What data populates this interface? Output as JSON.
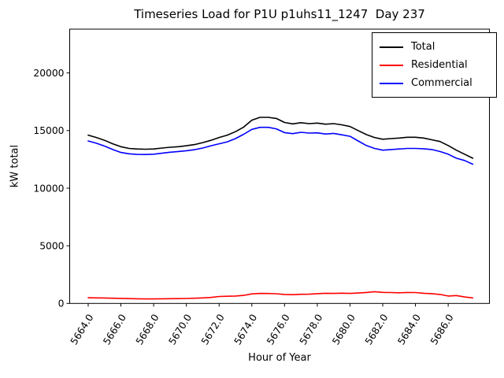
{
  "title": "Timeseries Load for P1U p1uhs11_1247  Day 237",
  "chart_data": {
    "type": "line",
    "title": "Timeseries Load for P1U p1uhs11_1247  Day 237",
    "xlabel": "Hour of Year",
    "ylabel": "kW total",
    "xlim": [
      5662.87,
      5688.52
    ],
    "ylim": [
      0,
      23800
    ],
    "grid": false,
    "x_ticks": [
      5664,
      5666,
      5668,
      5670,
      5672,
      5674,
      5676,
      5678,
      5680,
      5682,
      5684,
      5686
    ],
    "x_tick_labels": [
      "5664.0",
      "5666.0",
      "5668.0",
      "5670.0",
      "5672.0",
      "5674.0",
      "5676.0",
      "5678.0",
      "5680.0",
      "5682.0",
      "5684.0",
      "5686.0"
    ],
    "x_tick_rotation": 60,
    "y_ticks": [
      0,
      5000,
      10000,
      15000,
      20000
    ],
    "y_tick_labels": [
      "0",
      "5000",
      "10000",
      "15000",
      "20000"
    ],
    "legend": {
      "position": "upper right"
    },
    "x": [
      5664.0,
      5664.5,
      5665.0,
      5665.5,
      5666.0,
      5666.5,
      5667.0,
      5667.5,
      5668.0,
      5668.5,
      5669.0,
      5669.5,
      5670.0,
      5670.5,
      5671.0,
      5671.5,
      5672.0,
      5672.5,
      5673.0,
      5673.5,
      5674.0,
      5674.5,
      5675.0,
      5675.5,
      5676.0,
      5676.5,
      5677.0,
      5677.5,
      5678.0,
      5678.5,
      5679.0,
      5679.5,
      5680.0,
      5680.5,
      5681.0,
      5681.5,
      5682.0,
      5682.5,
      5683.0,
      5683.5,
      5684.0,
      5684.5,
      5685.0,
      5685.5,
      5686.0,
      5686.5,
      5687.0,
      5687.5
    ],
    "series": [
      {
        "name": "Total",
        "color": "#000000",
        "values": [
          14600,
          14400,
          14150,
          13850,
          13600,
          13450,
          13400,
          13380,
          13400,
          13480,
          13550,
          13600,
          13680,
          13780,
          13950,
          14150,
          14400,
          14600,
          14900,
          15300,
          15900,
          16150,
          16150,
          16050,
          15700,
          15580,
          15680,
          15600,
          15650,
          15550,
          15600,
          15500,
          15350,
          15000,
          14650,
          14400,
          14250,
          14300,
          14350,
          14420,
          14420,
          14350,
          14200,
          14050,
          13700,
          13300,
          12950,
          12600
        ]
      },
      {
        "name": "Residential",
        "color": "#ff0000",
        "values": [
          490,
          480,
          470,
          450,
          440,
          420,
          400,
          390,
          390,
          400,
          410,
          420,
          430,
          450,
          480,
          520,
          600,
          620,
          640,
          700,
          830,
          870,
          860,
          840,
          780,
          760,
          790,
          800,
          850,
          880,
          870,
          890,
          870,
          900,
          950,
          1020,
          960,
          940,
          920,
          950,
          940,
          880,
          850,
          780,
          640,
          680,
          560,
          480
        ]
      },
      {
        "name": "Commercial",
        "color": "#0000ff",
        "values": [
          14100,
          13900,
          13650,
          13350,
          13100,
          12980,
          12930,
          12920,
          12950,
          13030,
          13120,
          13180,
          13250,
          13340,
          13480,
          13680,
          13850,
          14020,
          14300,
          14680,
          15100,
          15280,
          15280,
          15150,
          14820,
          14730,
          14850,
          14780,
          14800,
          14700,
          14750,
          14630,
          14500,
          14100,
          13700,
          13450,
          13300,
          13350,
          13400,
          13450,
          13450,
          13420,
          13350,
          13180,
          12950,
          12600,
          12400,
          12080
        ]
      }
    ]
  }
}
